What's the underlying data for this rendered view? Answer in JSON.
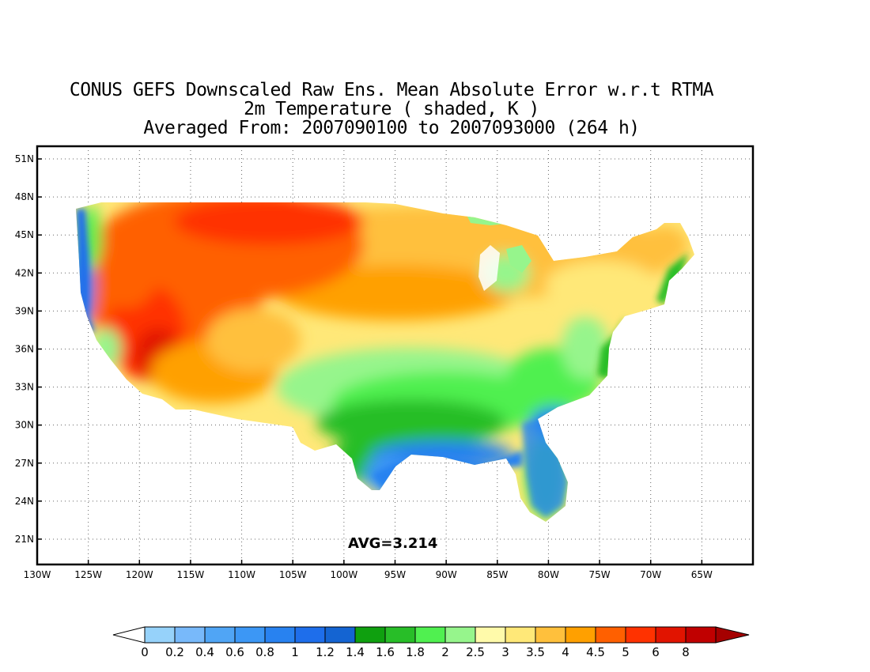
{
  "title": {
    "line1": "CONUS GEFS Downscaled Raw Ens. Mean Absolute Error w.r.t RTMA",
    "line2": "2m Temperature ( shaded, K )",
    "line3": "Averaged From: 2007090100 to 2007093000 (264 h)"
  },
  "map": {
    "lon_range": [
      -130,
      -60
    ],
    "lat_range": [
      19,
      52
    ],
    "avg_label": "AVG=3.214",
    "grid": true,
    "lat_ticks": [
      {
        "value": 51,
        "label": "51N"
      },
      {
        "value": 48,
        "label": "48N"
      },
      {
        "value": 45,
        "label": "45N"
      },
      {
        "value": 42,
        "label": "42N"
      },
      {
        "value": 39,
        "label": "39N"
      },
      {
        "value": 36,
        "label": "36N"
      },
      {
        "value": 33,
        "label": "33N"
      },
      {
        "value": 30,
        "label": "30N"
      },
      {
        "value": 27,
        "label": "27N"
      },
      {
        "value": 24,
        "label": "24N"
      },
      {
        "value": 21,
        "label": "21N"
      }
    ],
    "lon_ticks": [
      {
        "value": -130,
        "label": "130W"
      },
      {
        "value": -125,
        "label": "125W"
      },
      {
        "value": -120,
        "label": "120W"
      },
      {
        "value": -115,
        "label": "115W"
      },
      {
        "value": -110,
        "label": "110W"
      },
      {
        "value": -105,
        "label": "105W"
      },
      {
        "value": -100,
        "label": "100W"
      },
      {
        "value": -95,
        "label": "95W"
      },
      {
        "value": -90,
        "label": "90W"
      },
      {
        "value": -85,
        "label": "85W"
      },
      {
        "value": -80,
        "label": "80W"
      },
      {
        "value": -75,
        "label": "75W"
      },
      {
        "value": -70,
        "label": "70W"
      },
      {
        "value": -65,
        "label": "65W"
      }
    ]
  },
  "colorbar": {
    "labels": [
      "0",
      "0.2",
      "0.4",
      "0.6",
      "0.8",
      "1",
      "1.2",
      "1.4",
      "1.6",
      "1.8",
      "2",
      "2.5",
      "3",
      "3.5",
      "4",
      "4.5",
      "5",
      "6",
      "8"
    ],
    "colors": [
      "#96d2fa",
      "#78b9fa",
      "#50a5f5",
      "#3c97f5",
      "#2882f0",
      "#1e6eeb",
      "#1464d2",
      "#0fa00f",
      "#28be28",
      "#50f050",
      "#96f58c",
      "#fffaaa",
      "#ffe878",
      "#ffc03c",
      "#ffa000",
      "#ff6000",
      "#ff3200",
      "#e11400",
      "#c00000"
    ],
    "under_color": "#ffffff",
    "over_color": "#a50000"
  }
}
